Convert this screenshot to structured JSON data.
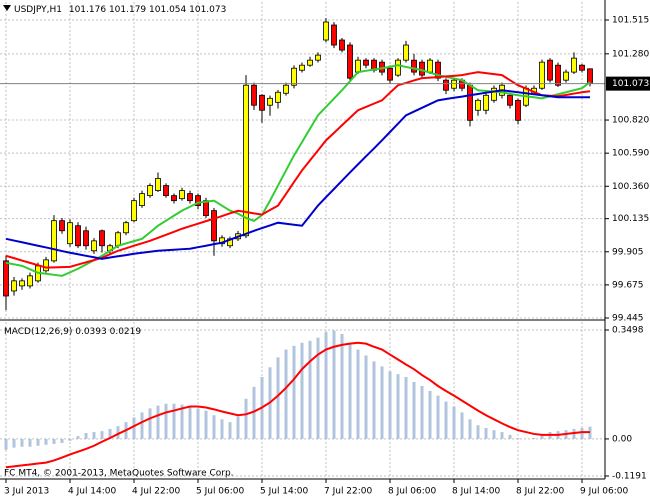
{
  "chart_data": [
    {
      "type": "candlestick",
      "title": "USDJPY,H1",
      "categories": [
        "3 Jul 2013",
        null,
        null,
        null,
        null,
        null,
        null,
        null,
        "4 Jul 14:00",
        null,
        null,
        null,
        null,
        null,
        null,
        null,
        "4 Jul 22:00",
        null,
        null,
        null,
        null,
        null,
        null,
        null,
        "5 Jul 06:00",
        null,
        null,
        null,
        null,
        null,
        null,
        null,
        "5 Jul 14:00",
        null,
        null,
        null,
        null,
        null,
        null,
        null,
        "7 Jul 22:00",
        null,
        null,
        null,
        null,
        null,
        null,
        null,
        "8 Jul 06:00",
        null,
        null,
        null,
        null,
        null,
        null,
        null,
        "8 Jul 14:00",
        null,
        null,
        null,
        null,
        null,
        null,
        null,
        "8 Jul 22:00",
        null,
        null,
        null,
        null,
        null,
        null,
        null,
        "9 Jul 06:00",
        null
      ],
      "open": [
        99.842,
        99.633,
        99.668,
        99.668,
        99.703,
        99.773,
        99.842,
        100.121,
        99.961,
        100.086,
        100.051,
        99.912,
        100.051,
        99.912,
        99.947,
        100.037,
        100.121,
        100.226,
        100.295,
        100.33,
        100.365,
        100.295,
        100.274,
        100.309,
        100.295,
        100.26,
        100.191,
        99.961,
        99.947,
        99.995,
        100.016,
        101.062,
        100.992,
        100.923,
        100.943,
        101.006,
        101.062,
        101.166,
        101.201,
        101.236,
        101.376,
        101.48,
        101.376,
        101.341,
        101.153,
        101.236,
        101.236,
        101.222,
        101.18,
        101.132,
        101.236,
        101.236,
        101.222,
        101.153,
        101.222,
        101.097,
        101.041,
        101.097,
        101.062,
        100.888,
        100.888,
        100.957,
        100.992,
        100.992,
        100.957,
        100.923,
        101.013,
        101.041,
        101.236,
        101.201,
        101.097,
        101.153,
        101.201,
        101.176
      ],
      "high": [
        99.877,
        99.73,
        99.72,
        99.76,
        99.83,
        99.87,
        100.16,
        100.14,
        100.13,
        100.11,
        100.08,
        100.0,
        100.06,
        99.96,
        100.05,
        100.12,
        100.28,
        100.33,
        100.38,
        100.456,
        100.38,
        100.31,
        100.35,
        100.33,
        100.31,
        100.28,
        100.21,
        100.02,
        100.01,
        100.05,
        101.132,
        101.08,
        101.0,
        100.99,
        101.03,
        101.08,
        101.2,
        101.22,
        101.26,
        101.29,
        101.529,
        101.5,
        101.39,
        101.36,
        101.26,
        101.25,
        101.25,
        101.24,
        101.2,
        101.25,
        101.37,
        101.28,
        101.24,
        101.25,
        101.24,
        101.11,
        101.11,
        101.11,
        101.08,
        100.97,
        101.01,
        101.06,
        101.08,
        101.01,
        100.97,
        101.06,
        101.06,
        101.24,
        101.25,
        101.22,
        101.17,
        101.29,
        101.21,
        101.179
      ],
      "low": [
        99.5,
        99.6,
        99.64,
        99.65,
        99.69,
        99.76,
        99.83,
        100.03,
        99.94,
        99.93,
        99.92,
        99.89,
        99.9,
        99.89,
        99.93,
        100.02,
        100.11,
        100.21,
        100.28,
        100.32,
        100.28,
        100.24,
        100.26,
        100.24,
        100.2,
        100.14,
        99.877,
        99.94,
        99.93,
        99.98,
        100.0,
        100.89,
        100.8,
        100.85,
        100.9,
        100.99,
        101.04,
        101.15,
        101.19,
        101.22,
        101.36,
        101.32,
        101.29,
        101.09,
        101.14,
        101.18,
        101.15,
        101.13,
        101.07,
        101.12,
        101.22,
        101.13,
        101.11,
        101.14,
        101.09,
        101.0,
        101.02,
        101.02,
        100.776,
        100.85,
        100.86,
        100.94,
        100.97,
        100.9,
        100.79,
        100.91,
        101.0,
        101.03,
        101.08,
        101.05,
        101.08,
        101.14,
        101.15,
        101.054
      ],
      "close": [
        99.598,
        99.703,
        99.703,
        99.738,
        99.807,
        99.849,
        100.121,
        100.051,
        100.107,
        99.947,
        99.947,
        99.981,
        99.947,
        99.947,
        100.037,
        100.107,
        100.26,
        100.309,
        100.365,
        100.414,
        100.295,
        100.26,
        100.33,
        100.26,
        100.226,
        100.156,
        99.981,
        100.002,
        99.995,
        100.03,
        101.062,
        100.923,
        100.888,
        100.971,
        101.013,
        101.062,
        101.18,
        101.201,
        101.236,
        101.271,
        101.501,
        101.341,
        101.306,
        101.111,
        101.236,
        101.201,
        101.166,
        101.153,
        101.097,
        101.236,
        101.341,
        101.153,
        101.132,
        101.236,
        101.111,
        101.027,
        101.097,
        101.041,
        100.818,
        100.957,
        100.992,
        101.041,
        101.062,
        100.923,
        100.818,
        101.041,
        101.041,
        101.222,
        101.097,
        101.062,
        101.153,
        101.25,
        101.166,
        101.073
      ],
      "up_color": "#ffff00",
      "down_color": "#ff0000",
      "lines": [
        {
          "color": "#32cd32",
          "values": [
            99.828,
            99.818,
            99.807,
            99.783,
            99.759,
            99.752,
            99.745,
            99.738,
            99.762,
            99.787,
            99.817,
            99.847,
            99.877,
            99.912,
            99.947,
            99.963,
            99.979,
            99.995,
            100.04,
            100.086,
            100.121,
            100.156,
            100.191,
            100.218,
            100.246,
            100.253,
            100.26,
            100.225,
            100.191,
            100.17,
            100.14,
            100.12,
            100.16,
            100.26,
            100.365,
            100.47,
            100.574,
            100.667,
            100.76,
            100.853,
            100.911,
            100.969,
            101.027,
            101.09,
            101.153,
            101.162,
            101.171,
            101.18,
            101.19,
            101.201,
            101.189,
            101.178,
            101.166,
            101.149,
            101.132,
            101.12,
            101.109,
            101.097,
            101.062,
            101.027,
            101.022,
            101.018,
            101.013,
            101.002,
            100.992,
            100.985,
            100.978,
            100.971,
            100.985,
            100.999,
            101.013,
            101.027,
            101.041,
            101.083
          ]
        },
        {
          "color": "#ff0000",
          "values": [
            99.877,
            99.861,
            99.844,
            99.828,
            99.812,
            99.795,
            99.797,
            99.798,
            99.8,
            99.816,
            99.832,
            99.847,
            99.863,
            99.888,
            99.912,
            99.929,
            99.947,
            99.964,
            99.981,
            100.002,
            100.023,
            100.044,
            100.065,
            100.083,
            100.1,
            100.118,
            100.135,
            100.153,
            100.172,
            100.19,
            100.181,
            100.172,
            100.163,
            100.195,
            100.226,
            100.307,
            100.389,
            100.47,
            100.54,
            100.609,
            100.679,
            100.731,
            100.784,
            100.836,
            100.888,
            100.911,
            100.934,
            100.957,
            101.01,
            101.062,
            101.078,
            101.095,
            101.111,
            101.115,
            101.118,
            101.123,
            101.127,
            101.132,
            101.143,
            101.153,
            101.146,
            101.139,
            101.132,
            101.097,
            101.062,
            101.039,
            101.015,
            100.992,
            100.989,
            100.985,
            100.994,
            101.004,
            101.013,
            101.02
          ]
        },
        {
          "color": "#0000cd",
          "values": [
            99.995,
            99.983,
            99.971,
            99.959,
            99.947,
            99.935,
            99.923,
            99.91,
            99.898,
            99.888,
            99.877,
            99.867,
            99.856,
            99.865,
            99.874,
            99.882,
            99.891,
            99.898,
            99.905,
            99.912,
            99.916,
            99.919,
            99.923,
            99.926,
            99.937,
            99.947,
            99.958,
            99.968,
            99.989,
            100.01,
            100.03,
            100.051,
            100.07,
            100.088,
            100.107,
            100.1,
            100.093,
            100.086,
            100.156,
            100.226,
            100.284,
            100.341,
            100.399,
            100.456,
            100.512,
            100.568,
            100.623,
            100.679,
            100.737,
            100.795,
            100.853,
            100.879,
            100.905,
            100.931,
            100.957,
            100.966,
            100.975,
            100.983,
            100.992,
            101.001,
            101.01,
            101.018,
            101.027,
            101.02,
            101.013,
            101.006,
            100.999,
            100.992,
            100.985,
            100.978,
            100.978,
            100.978,
            100.978,
            100.978
          ]
        }
      ],
      "ylim": [
        99.445,
        101.64
      ],
      "yticks": [
        101.515,
        {
          "value": 101.28,
          "label": "101.280"
        },
        {
          "value": 100.82,
          "label": "100.820"
        },
        {
          "value": 100.59,
          "label": "100.590"
        },
        {
          "value": 100.36,
          "label": "100.360"
        },
        100.135,
        99.905,
        99.675,
        99.445
      ],
      "grid": true
    },
    {
      "type": "macd",
      "title": "MACD(12,26,9)",
      "histogram": {
        "color": "#b0c4de",
        "values": [
          -0.035,
          -0.028,
          -0.025,
          -0.025,
          -0.022,
          -0.019,
          -0.016,
          -0.013,
          -0.006,
          0.009,
          0.019,
          0.022,
          0.025,
          0.032,
          0.041,
          0.054,
          0.069,
          0.085,
          0.098,
          0.107,
          0.113,
          0.113,
          0.11,
          0.104,
          0.098,
          0.091,
          0.076,
          0.063,
          0.054,
          0.072,
          0.129,
          0.167,
          0.199,
          0.23,
          0.262,
          0.287,
          0.299,
          0.309,
          0.315,
          0.325,
          0.343,
          0.348,
          0.337,
          0.309,
          0.287,
          0.268,
          0.249,
          0.233,
          0.217,
          0.208,
          0.199,
          0.183,
          0.17,
          0.154,
          0.139,
          0.12,
          0.104,
          0.085,
          0.063,
          0.044,
          0.035,
          0.028,
          0.022,
          0.013,
          0.003,
          0.0,
          0.003,
          0.013,
          0.022,
          0.025,
          0.028,
          0.032,
          0.035,
          0.0393
        ]
      },
      "signal": {
        "color": "#ff0000",
        "values": [
          -0.091,
          -0.088,
          -0.085,
          -0.082,
          -0.079,
          -0.076,
          -0.069,
          -0.06,
          -0.05,
          -0.041,
          -0.032,
          -0.022,
          -0.009,
          0.003,
          0.016,
          0.028,
          0.041,
          0.054,
          0.066,
          0.076,
          0.085,
          0.091,
          0.098,
          0.104,
          0.104,
          0.101,
          0.095,
          0.088,
          0.082,
          0.076,
          0.079,
          0.088,
          0.101,
          0.117,
          0.139,
          0.164,
          0.192,
          0.224,
          0.249,
          0.271,
          0.287,
          0.296,
          0.302,
          0.306,
          0.309,
          0.306,
          0.296,
          0.287,
          0.271,
          0.255,
          0.239,
          0.224,
          0.205,
          0.189,
          0.17,
          0.154,
          0.139,
          0.123,
          0.107,
          0.091,
          0.076,
          0.063,
          0.05,
          0.038,
          0.028,
          0.022,
          0.016,
          0.013,
          0.013,
          0.013,
          0.016,
          0.019,
          0.022,
          0.0219
        ]
      },
      "ylim": [
        -0.1255,
        0.3755
      ],
      "yticks": [
        0.3498,
        {
          "value": 0,
          "label": "0.00"
        },
        -0.1191
      ],
      "annotation": "FC MT4, © 2001-2013, MetaQuotes Software Corp.",
      "grid": true
    }
  ]
}
